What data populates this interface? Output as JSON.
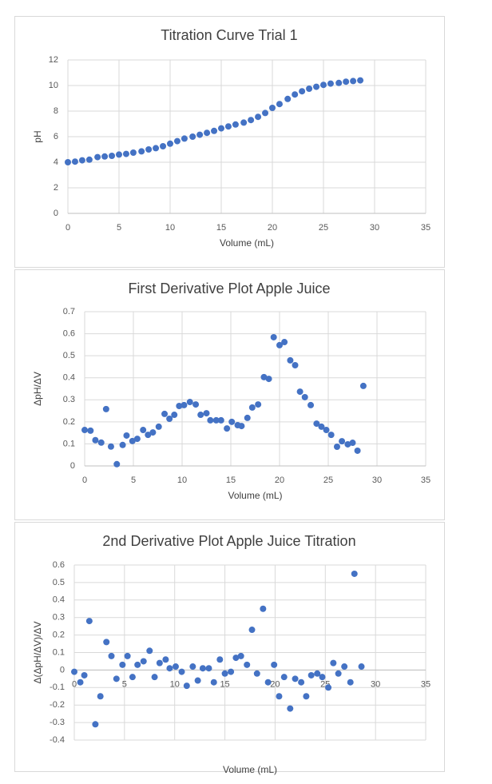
{
  "chart_data": [
    {
      "type": "scatter",
      "title": "Titration Curve Trial 1",
      "x_label": "Volume (mL)",
      "y_label": "pH",
      "color": "#4472c4",
      "grid": true,
      "xlim": [
        0,
        35
      ],
      "xticks": [
        0,
        5,
        10,
        15,
        20,
        25,
        30,
        35
      ],
      "ylim": [
        0,
        12
      ],
      "yticks": [
        0,
        2,
        4,
        6,
        8,
        10,
        12
      ],
      "x": [
        0,
        0.7,
        1.4,
        2.1,
        2.9,
        3.6,
        4.3,
        5.0,
        5.7,
        6.4,
        7.2,
        7.9,
        8.6,
        9.3,
        10.0,
        10.7,
        11.4,
        12.2,
        12.9,
        13.6,
        14.3,
        15.0,
        15.7,
        16.4,
        17.2,
        17.9,
        18.6,
        19.3,
        20.0,
        20.7,
        21.5,
        22.2,
        22.9,
        23.6,
        24.3,
        25.0,
        25.7,
        26.5,
        27.2,
        27.9,
        28.6
      ],
      "values": [
        4.0,
        4.05,
        4.15,
        4.2,
        4.4,
        4.45,
        4.5,
        4.6,
        4.65,
        4.75,
        4.85,
        5.0,
        5.1,
        5.25,
        5.45,
        5.65,
        5.85,
        6.0,
        6.15,
        6.3,
        6.45,
        6.65,
        6.8,
        6.95,
        7.1,
        7.3,
        7.55,
        7.85,
        8.25,
        8.55,
        8.95,
        9.3,
        9.55,
        9.75,
        9.9,
        10.05,
        10.15,
        10.2,
        10.3,
        10.35,
        10.4
      ]
    },
    {
      "type": "scatter",
      "title": "First Derivative Plot Apple Juice",
      "x_label": "Volume (mL)",
      "y_label": "ΔpH/ΔV",
      "color": "#4472c4",
      "grid": true,
      "xlim": [
        0,
        35
      ],
      "xticks": [
        0,
        5,
        10,
        15,
        20,
        25,
        30,
        35
      ],
      "ylim": [
        0,
        0.7
      ],
      "yticks": [
        0,
        0.1,
        0.2,
        0.3,
        0.4,
        0.5,
        0.6,
        0.7
      ],
      "x": [
        0,
        0.6,
        1.1,
        1.7,
        2.2,
        2.7,
        3.3,
        3.9,
        4.3,
        4.9,
        5.4,
        6.0,
        6.5,
        7.0,
        7.6,
        8.2,
        8.7,
        9.2,
        9.7,
        10.2,
        10.8,
        11.4,
        11.9,
        12.5,
        12.9,
        13.5,
        14.0,
        14.6,
        15.1,
        15.7,
        16.1,
        16.7,
        17.2,
        17.8,
        18.4,
        18.9,
        19.4,
        20.0,
        20.5,
        21.1,
        21.6,
        22.1,
        22.6,
        23.2,
        23.8,
        24.3,
        24.8,
        25.3,
        25.9,
        26.4,
        27.0,
        27.5,
        28.0,
        28.6
      ],
      "values": [
        0.163,
        0.16,
        0.117,
        0.106,
        0.258,
        0.088,
        0.008,
        0.095,
        0.138,
        0.113,
        0.123,
        0.163,
        0.141,
        0.152,
        0.178,
        0.236,
        0.214,
        0.232,
        0.272,
        0.276,
        0.29,
        0.279,
        0.232,
        0.239,
        0.207,
        0.207,
        0.207,
        0.17,
        0.2,
        0.185,
        0.181,
        0.218,
        0.265,
        0.279,
        0.403,
        0.395,
        0.584,
        0.548,
        0.562,
        0.479,
        0.457,
        0.337,
        0.312,
        0.276,
        0.192,
        0.178,
        0.163,
        0.141,
        0.087,
        0.112,
        0.098,
        0.105,
        0.069,
        0.363
      ]
    },
    {
      "type": "scatter",
      "title": "2nd Derivative Plot Apple Juice Titration",
      "x_label": "Volume (mL)",
      "y_label": "Δ(ΔpH/ΔV)/ΔV",
      "color": "#4472c4",
      "grid": true,
      "xlim": [
        0,
        35
      ],
      "xticks": [
        0,
        5,
        10,
        15,
        20,
        25,
        30,
        35
      ],
      "ylim": [
        -0.4,
        0.6
      ],
      "yticks": [
        -0.4,
        -0.3,
        -0.2,
        -0.1,
        0,
        0.1,
        0.2,
        0.3,
        0.4,
        0.5,
        0.6
      ],
      "x": [
        0,
        0.6,
        1.0,
        1.5,
        2.1,
        2.6,
        3.2,
        3.7,
        4.2,
        4.8,
        5.3,
        5.8,
        6.3,
        6.9,
        7.5,
        8.0,
        8.5,
        9.1,
        9.5,
        10.1,
        10.7,
        11.2,
        11.8,
        12.3,
        12.8,
        13.4,
        13.9,
        14.5,
        15.0,
        15.6,
        16.1,
        16.6,
        17.2,
        17.7,
        18.2,
        18.8,
        19.3,
        19.9,
        20.4,
        20.9,
        21.5,
        22.0,
        22.6,
        23.1,
        23.6,
        24.2,
        24.7,
        25.3,
        25.8,
        26.3,
        26.9,
        27.5,
        27.9,
        28.6
      ],
      "values": [
        -0.01,
        -0.07,
        -0.03,
        0.28,
        -0.31,
        -0.15,
        0.16,
        0.08,
        -0.05,
        0.03,
        0.08,
        -0.04,
        0.03,
        0.05,
        0.11,
        -0.04,
        0.04,
        0.06,
        0.01,
        0.02,
        -0.01,
        -0.09,
        0.02,
        -0.06,
        0.01,
        0.01,
        -0.07,
        0.06,
        -0.02,
        -0.01,
        0.07,
        0.08,
        0.03,
        0.23,
        -0.02,
        0.35,
        -0.07,
        0.03,
        -0.15,
        -0.04,
        -0.22,
        -0.05,
        -0.07,
        -0.15,
        -0.03,
        -0.02,
        -0.04,
        -0.1,
        0.04,
        -0.02,
        0.02,
        -0.07,
        0.55,
        0.02
      ]
    }
  ]
}
